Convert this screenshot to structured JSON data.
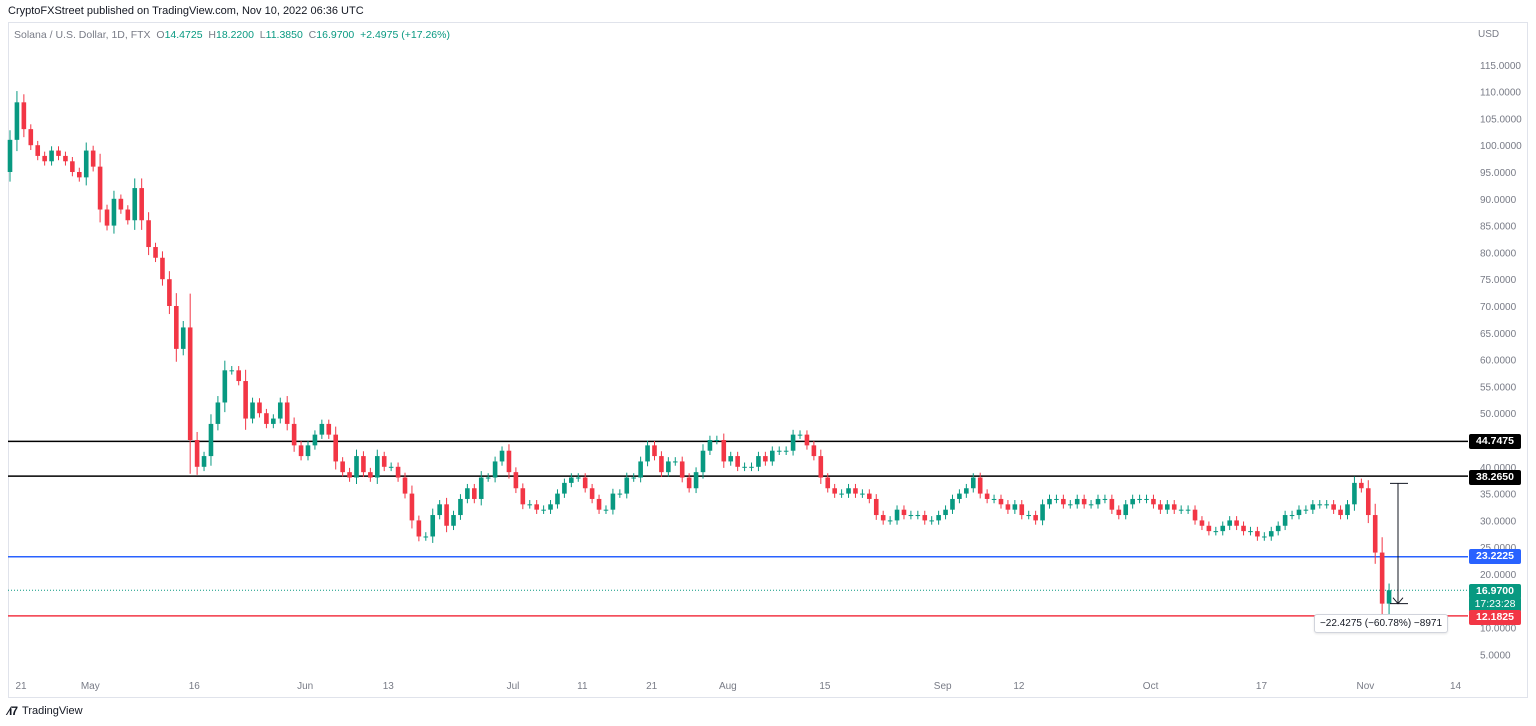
{
  "publisher_line": "CryptoFXStreet published on TradingView.com, Nov 10, 2022 06:36 UTC",
  "legend": {
    "symbol": "Solana / U.S. Dollar, 1D, FTX",
    "o_label": "O",
    "o": "14.4725",
    "h_label": "H",
    "h": "18.2200",
    "l_label": "L",
    "l": "11.3850",
    "c_label": "C",
    "c": "16.9700",
    "change": "+2.4975 (+17.26%)"
  },
  "currency": "USD",
  "brand": "TradingView",
  "measure": {
    "label": "−22.4275 (−60.78%) −8971"
  },
  "tags": {
    "r1": "44.7475",
    "r2": "38.2650",
    "s1": "23.2225",
    "s2": "12.1825",
    "price": "16.9700",
    "countdown": "17:23:28"
  },
  "colors": {
    "up": "#089981",
    "down": "#f23645",
    "black_line": "#000000",
    "blue_line": "#2962ff",
    "red_line": "#f23645"
  },
  "chart_data": {
    "type": "candlestick",
    "symbol": "Solana / U.S. Dollar, 1D, FTX",
    "ylim": [
      0,
      121
    ],
    "y_ticks": [
      "5.0000",
      "10.0000",
      "15.0000",
      "20.0000",
      "25.0000",
      "30.0000",
      "35.0000",
      "40.0000",
      "45.0000",
      "50.0000",
      "55.0000",
      "60.0000",
      "65.0000",
      "70.0000",
      "75.0000",
      "80.0000",
      "85.0000",
      "90.0000",
      "95.0000",
      "100.0000",
      "105.0000",
      "110.0000",
      "115.0000"
    ],
    "x_ticks": [
      {
        "label": "21",
        "day": 0
      },
      {
        "label": "May",
        "day": 10
      },
      {
        "label": "16",
        "day": 25
      },
      {
        "label": "Jun",
        "day": 41
      },
      {
        "label": "13",
        "day": 53
      },
      {
        "label": "Jul",
        "day": 71
      },
      {
        "label": "11",
        "day": 81
      },
      {
        "label": "21",
        "day": 91
      },
      {
        "label": "Aug",
        "day": 102
      },
      {
        "label": "15",
        "day": 116
      },
      {
        "label": "Sep",
        "day": 133
      },
      {
        "label": "12",
        "day": 144
      },
      {
        "label": "Oct",
        "day": 163
      },
      {
        "label": "17",
        "day": 179
      },
      {
        "label": "Nov",
        "day": 194
      },
      {
        "label": "14",
        "day": 207
      }
    ],
    "horizontal_levels": [
      {
        "value": 44.7475,
        "color": "#000000"
      },
      {
        "value": 38.265,
        "color": "#000000"
      },
      {
        "value": 23.2225,
        "color": "#2962ff"
      },
      {
        "value": 12.1825,
        "color": "#f23645"
      }
    ],
    "last_price": 16.97,
    "measure": {
      "from_day": 200,
      "to_day": 201,
      "from": 36.9,
      "to": 14.47,
      "change": -22.4275,
      "pct": -60.78,
      "bars": -8971
    },
    "closes": [
      101,
      108,
      103,
      100,
      98,
      97,
      99,
      98,
      97,
      95,
      94,
      99,
      96,
      88,
      85,
      90,
      88,
      86,
      92,
      86,
      81,
      79,
      75,
      70,
      62,
      66,
      45,
      40,
      42,
      48,
      52,
      58,
      58,
      56,
      49,
      52,
      50,
      48,
      49,
      52,
      48,
      44,
      42,
      44,
      46,
      48,
      46,
      41,
      39,
      38,
      42,
      39,
      38,
      42,
      40,
      40,
      38,
      35,
      30,
      27,
      27,
      31,
      33,
      29,
      31,
      34,
      36,
      34,
      38,
      38,
      41,
      43,
      39,
      36,
      33,
      33,
      32,
      32,
      33,
      35,
      37,
      38,
      38,
      36,
      34,
      32,
      32,
      35,
      35,
      38,
      38,
      41,
      44,
      42,
      39,
      41,
      41,
      38,
      36,
      39,
      43,
      45,
      45,
      41,
      42,
      40,
      40,
      40,
      42,
      41,
      43,
      43,
      43,
      46,
      46,
      44,
      42,
      38,
      36,
      35,
      35,
      36,
      35,
      35,
      34,
      31,
      30,
      30,
      32,
      31,
      31,
      31,
      30,
      30,
      31,
      32,
      34,
      35,
      36,
      38,
      35,
      34,
      34,
      33,
      32,
      33,
      31,
      31,
      30,
      33,
      34,
      34,
      33,
      33,
      34,
      33,
      33,
      34,
      34,
      32,
      31,
      33,
      34,
      34,
      34,
      33,
      32,
      33,
      32,
      32,
      32,
      30,
      29,
      28,
      28,
      29,
      30,
      29,
      28,
      28,
      27,
      27,
      28,
      29,
      31,
      31,
      32,
      32,
      33,
      33,
      33,
      32,
      31,
      33,
      37,
      36,
      31,
      24,
      14.47,
      16.97
    ],
    "ohlc_last": {
      "open": 14.4725,
      "high": 18.22,
      "low": 11.385,
      "close": 16.97,
      "change": 2.4975,
      "pct": 17.26
    }
  }
}
